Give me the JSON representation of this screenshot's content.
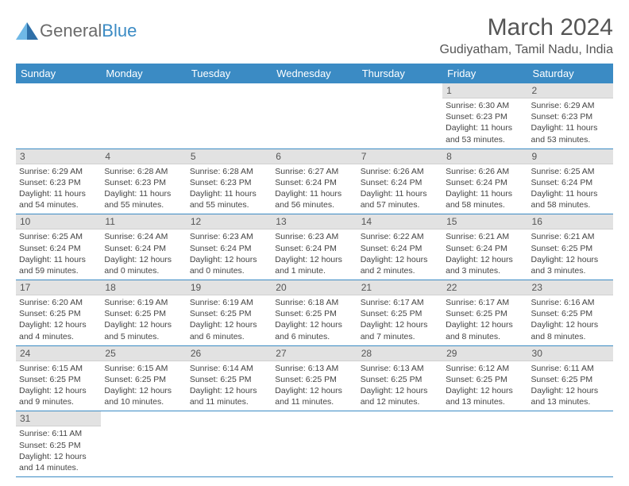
{
  "logo": {
    "word1": "General",
    "word2": "Blue"
  },
  "title": "March 2024",
  "location": "Gudiyatham, Tamil Nadu, India",
  "colors": {
    "header_bg": "#3b8bc4",
    "header_fg": "#ffffff",
    "daynum_bg": "#e2e2e2",
    "text": "#444444",
    "border": "#3b8bc4"
  },
  "weekdays": [
    "Sunday",
    "Monday",
    "Tuesday",
    "Wednesday",
    "Thursday",
    "Friday",
    "Saturday"
  ],
  "leading_blanks": 5,
  "days": [
    {
      "n": 1,
      "sunrise": "6:30 AM",
      "sunset": "6:23 PM",
      "daylight": "11 hours and 53 minutes."
    },
    {
      "n": 2,
      "sunrise": "6:29 AM",
      "sunset": "6:23 PM",
      "daylight": "11 hours and 53 minutes."
    },
    {
      "n": 3,
      "sunrise": "6:29 AM",
      "sunset": "6:23 PM",
      "daylight": "11 hours and 54 minutes."
    },
    {
      "n": 4,
      "sunrise": "6:28 AM",
      "sunset": "6:23 PM",
      "daylight": "11 hours and 55 minutes."
    },
    {
      "n": 5,
      "sunrise": "6:28 AM",
      "sunset": "6:23 PM",
      "daylight": "11 hours and 55 minutes."
    },
    {
      "n": 6,
      "sunrise": "6:27 AM",
      "sunset": "6:24 PM",
      "daylight": "11 hours and 56 minutes."
    },
    {
      "n": 7,
      "sunrise": "6:26 AM",
      "sunset": "6:24 PM",
      "daylight": "11 hours and 57 minutes."
    },
    {
      "n": 8,
      "sunrise": "6:26 AM",
      "sunset": "6:24 PM",
      "daylight": "11 hours and 58 minutes."
    },
    {
      "n": 9,
      "sunrise": "6:25 AM",
      "sunset": "6:24 PM",
      "daylight": "11 hours and 58 minutes."
    },
    {
      "n": 10,
      "sunrise": "6:25 AM",
      "sunset": "6:24 PM",
      "daylight": "11 hours and 59 minutes."
    },
    {
      "n": 11,
      "sunrise": "6:24 AM",
      "sunset": "6:24 PM",
      "daylight": "12 hours and 0 minutes."
    },
    {
      "n": 12,
      "sunrise": "6:23 AM",
      "sunset": "6:24 PM",
      "daylight": "12 hours and 0 minutes."
    },
    {
      "n": 13,
      "sunrise": "6:23 AM",
      "sunset": "6:24 PM",
      "daylight": "12 hours and 1 minute."
    },
    {
      "n": 14,
      "sunrise": "6:22 AM",
      "sunset": "6:24 PM",
      "daylight": "12 hours and 2 minutes."
    },
    {
      "n": 15,
      "sunrise": "6:21 AM",
      "sunset": "6:24 PM",
      "daylight": "12 hours and 3 minutes."
    },
    {
      "n": 16,
      "sunrise": "6:21 AM",
      "sunset": "6:25 PM",
      "daylight": "12 hours and 3 minutes."
    },
    {
      "n": 17,
      "sunrise": "6:20 AM",
      "sunset": "6:25 PM",
      "daylight": "12 hours and 4 minutes."
    },
    {
      "n": 18,
      "sunrise": "6:19 AM",
      "sunset": "6:25 PM",
      "daylight": "12 hours and 5 minutes."
    },
    {
      "n": 19,
      "sunrise": "6:19 AM",
      "sunset": "6:25 PM",
      "daylight": "12 hours and 6 minutes."
    },
    {
      "n": 20,
      "sunrise": "6:18 AM",
      "sunset": "6:25 PM",
      "daylight": "12 hours and 6 minutes."
    },
    {
      "n": 21,
      "sunrise": "6:17 AM",
      "sunset": "6:25 PM",
      "daylight": "12 hours and 7 minutes."
    },
    {
      "n": 22,
      "sunrise": "6:17 AM",
      "sunset": "6:25 PM",
      "daylight": "12 hours and 8 minutes."
    },
    {
      "n": 23,
      "sunrise": "6:16 AM",
      "sunset": "6:25 PM",
      "daylight": "12 hours and 8 minutes."
    },
    {
      "n": 24,
      "sunrise": "6:15 AM",
      "sunset": "6:25 PM",
      "daylight": "12 hours and 9 minutes."
    },
    {
      "n": 25,
      "sunrise": "6:15 AM",
      "sunset": "6:25 PM",
      "daylight": "12 hours and 10 minutes."
    },
    {
      "n": 26,
      "sunrise": "6:14 AM",
      "sunset": "6:25 PM",
      "daylight": "12 hours and 11 minutes."
    },
    {
      "n": 27,
      "sunrise": "6:13 AM",
      "sunset": "6:25 PM",
      "daylight": "12 hours and 11 minutes."
    },
    {
      "n": 28,
      "sunrise": "6:13 AM",
      "sunset": "6:25 PM",
      "daylight": "12 hours and 12 minutes."
    },
    {
      "n": 29,
      "sunrise": "6:12 AM",
      "sunset": "6:25 PM",
      "daylight": "12 hours and 13 minutes."
    },
    {
      "n": 30,
      "sunrise": "6:11 AM",
      "sunset": "6:25 PM",
      "daylight": "12 hours and 13 minutes."
    },
    {
      "n": 31,
      "sunrise": "6:11 AM",
      "sunset": "6:25 PM",
      "daylight": "12 hours and 14 minutes."
    }
  ]
}
